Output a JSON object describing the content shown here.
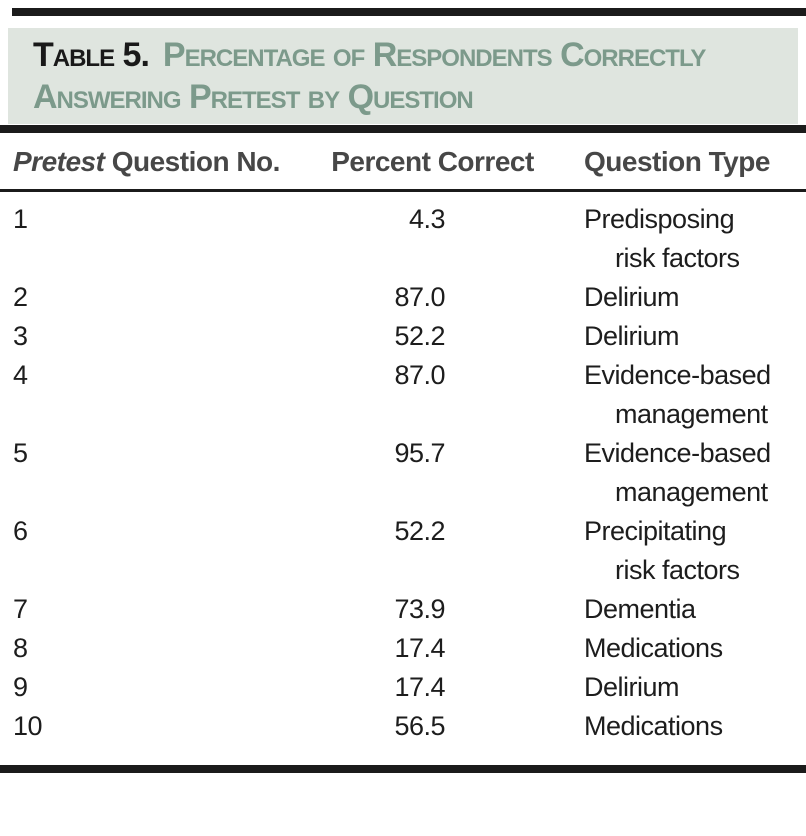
{
  "header": {
    "label": "Table 5.",
    "title_line1": "Percentage of Respondents Correctly",
    "title_line2": "Answering Pretest by Question"
  },
  "table": {
    "columns": {
      "question_no_italic": "Pretest",
      "question_no_rest": "Question No.",
      "percent": "Percent Correct",
      "type": "Question Type"
    },
    "rows": [
      {
        "no": "1",
        "percent": "4.3",
        "type_line1": "Predisposing",
        "type_line2": "risk factors"
      },
      {
        "no": "2",
        "percent": "87.0",
        "type_line1": "Delirium"
      },
      {
        "no": "3",
        "percent": "52.2",
        "type_line1": "Delirium"
      },
      {
        "no": "4",
        "percent": "87.0",
        "type_line1": "Evidence-based",
        "type_line2": "management"
      },
      {
        "no": "5",
        "percent": "95.7",
        "type_line1": "Evidence-based",
        "type_line2": "management"
      },
      {
        "no": "6",
        "percent": "52.2",
        "type_line1": "Precipitating",
        "type_line2": "risk factors"
      },
      {
        "no": "7",
        "percent": "73.9",
        "type_line1": "Dementia"
      },
      {
        "no": "8",
        "percent": "17.4",
        "type_line1": "Medications"
      },
      {
        "no": "9",
        "percent": "17.4",
        "type_line1": "Delirium"
      },
      {
        "no": "10",
        "percent": "56.5",
        "type_line1": "Medications"
      }
    ]
  },
  "colors": {
    "rule": "#1b1b1b",
    "header_box_bg": "#dfe5df",
    "title_green": "#7c9a8b",
    "title_black": "#191919",
    "column_header_gray": "#474747",
    "body_text": "#1d1d1d"
  }
}
